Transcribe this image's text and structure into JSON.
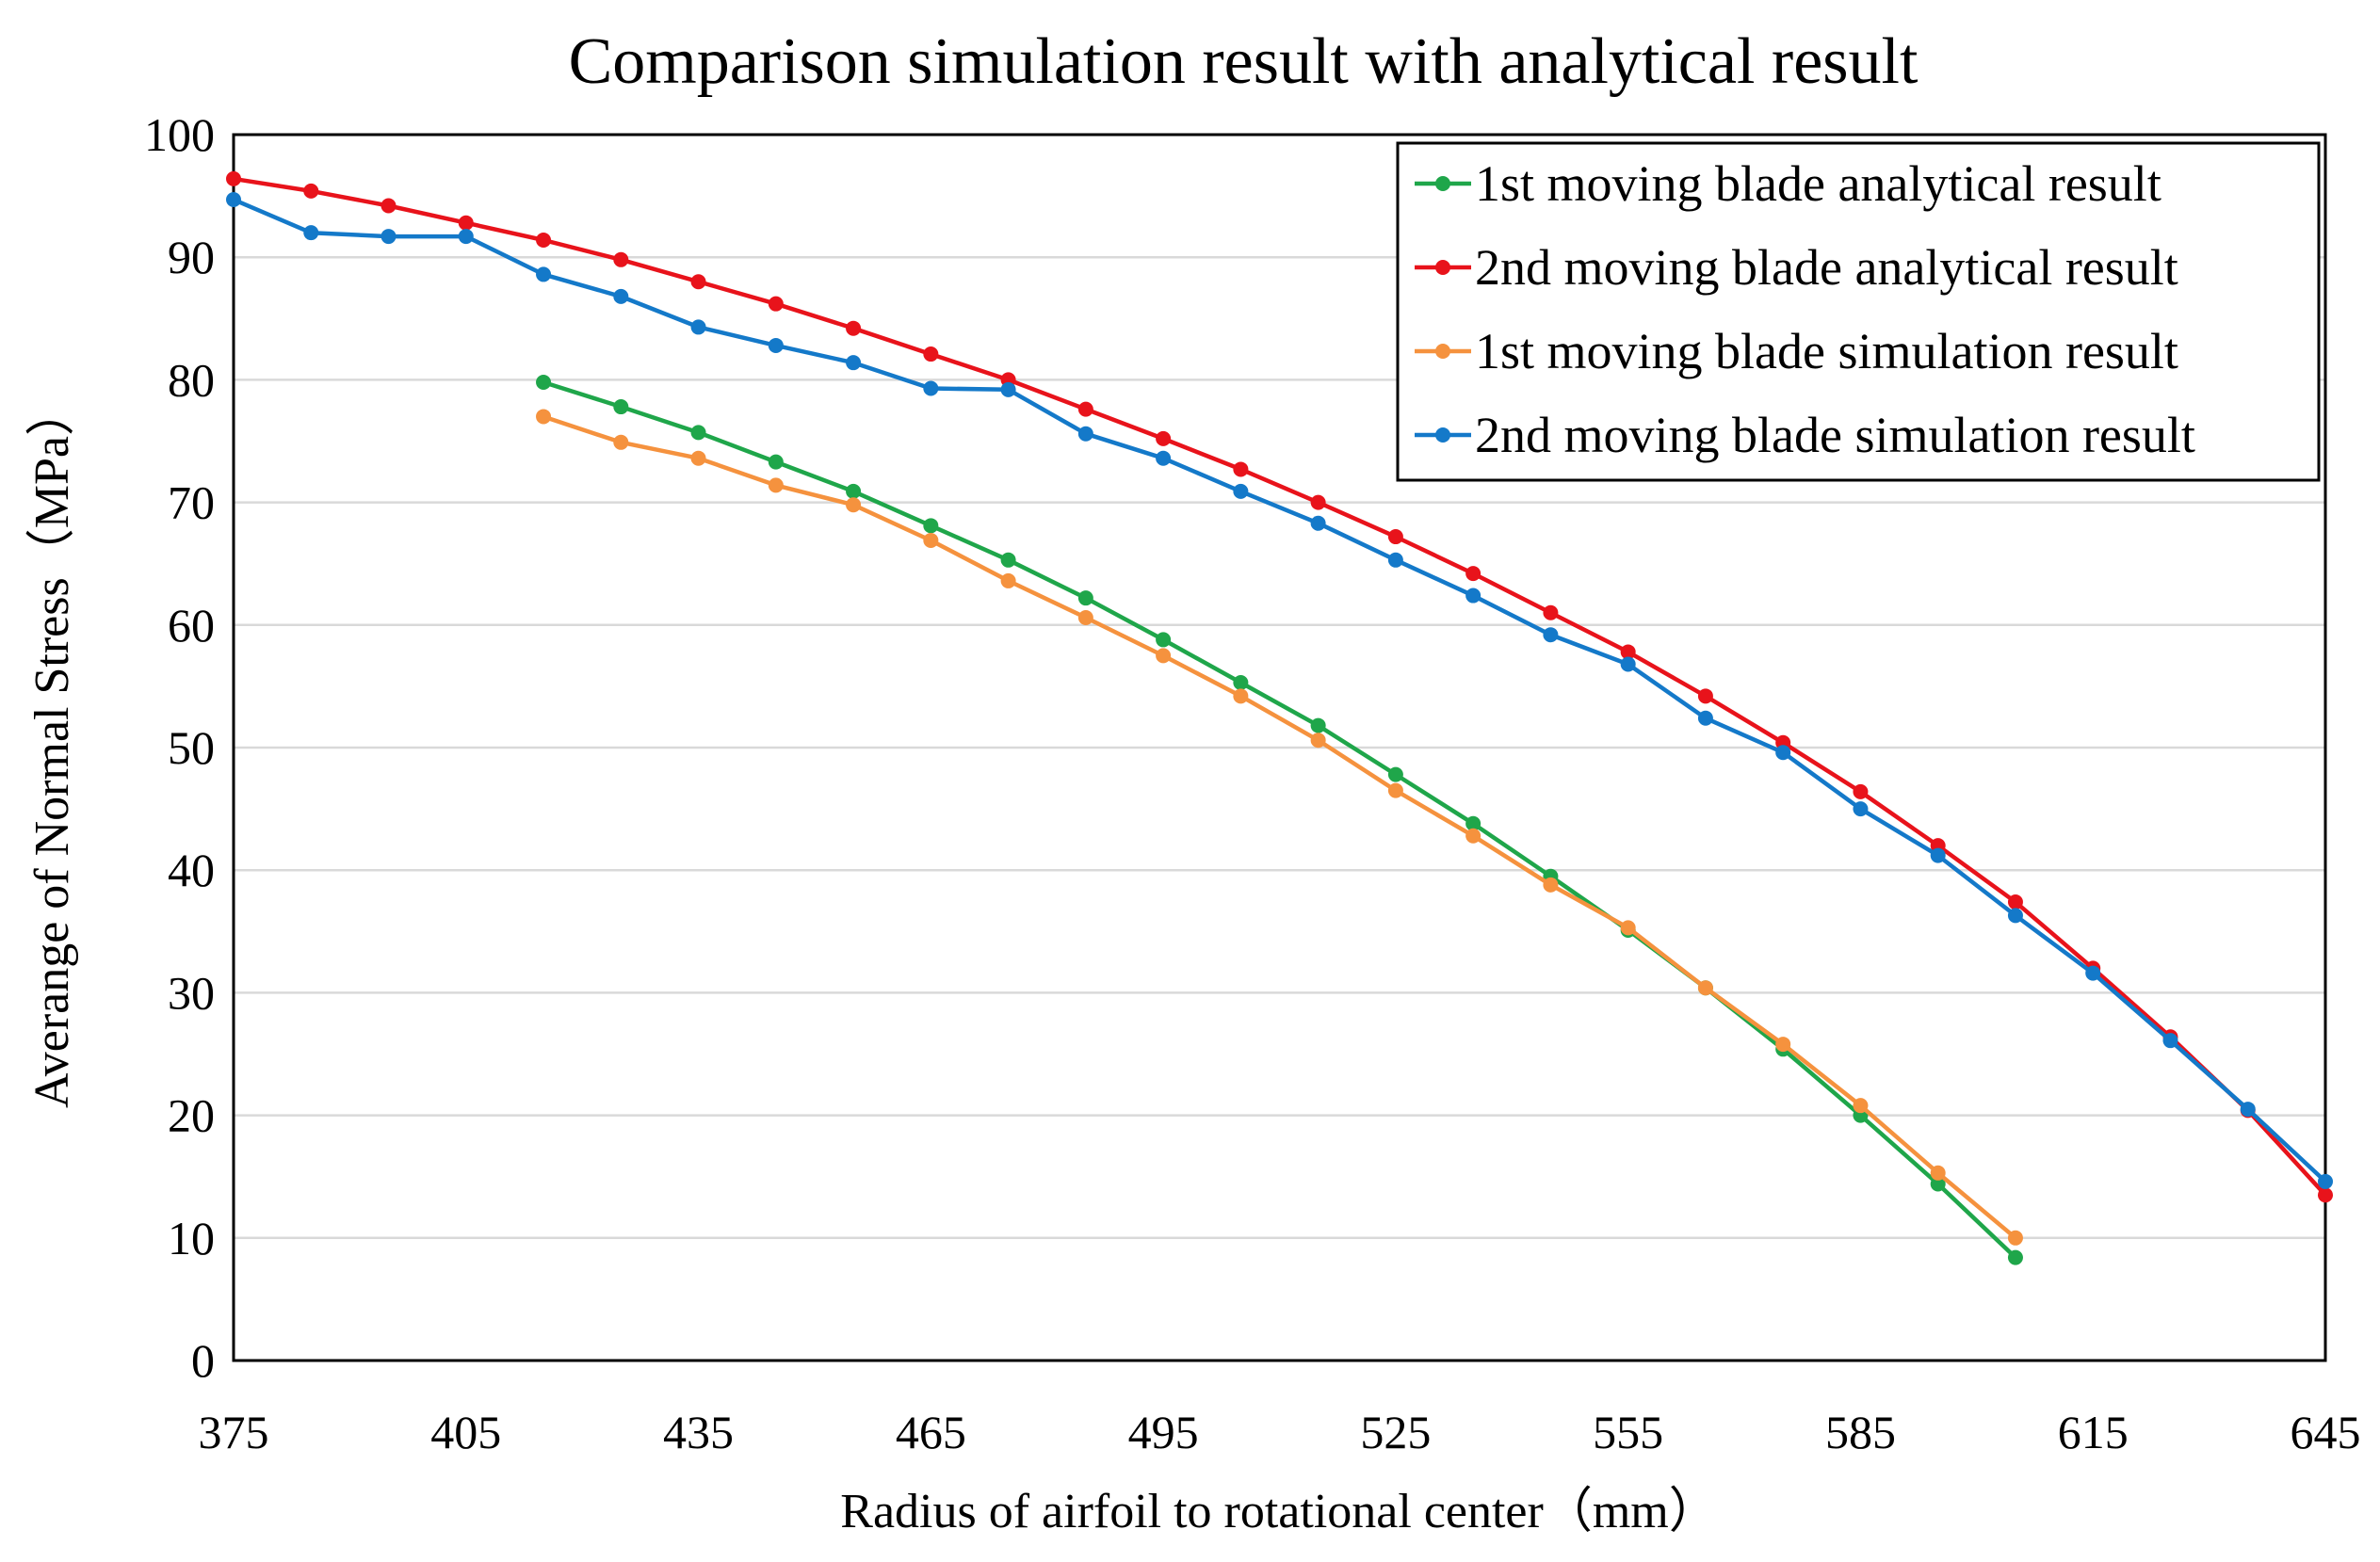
{
  "chart_data": {
    "type": "line",
    "title": "Comparison simulation result with analytical result",
    "xlabel": "Radius of airfoil to rotational center（mm）",
    "ylabel": "Averange of Normal Stress（MPa）",
    "xlim": [
      375,
      645
    ],
    "ylim": [
      0,
      100
    ],
    "xticks": [
      "375",
      "405",
      "435",
      "465",
      "495",
      "525",
      "555",
      "585",
      "615",
      "645"
    ],
    "yticks": [
      "0",
      "10",
      "20",
      "30",
      "40",
      "50",
      "60",
      "70",
      "80",
      "90",
      "100"
    ],
    "grid": "horizontal",
    "legend_position": "top-right",
    "series": [
      {
        "name": "1st moving blade analytical result",
        "color": "#1fa64a",
        "x": [
          415,
          425,
          435,
          445,
          455,
          465,
          475,
          485,
          495,
          505,
          515,
          525,
          535,
          545,
          555,
          565,
          575,
          585,
          595,
          605
        ],
        "values": [
          79.8,
          77.8,
          75.7,
          73.3,
          70.9,
          68.1,
          65.3,
          62.2,
          58.8,
          55.3,
          51.8,
          47.8,
          43.8,
          39.5,
          35.1,
          30.4,
          25.4,
          20.0,
          14.4,
          8.4
        ]
      },
      {
        "name": "2nd moving blade analytical result",
        "color": "#e8131b",
        "x": [
          375,
          385,
          395,
          405,
          415,
          425,
          435,
          445,
          455,
          465,
          475,
          485,
          495,
          505,
          515,
          525,
          535,
          545,
          555,
          565,
          575,
          585,
          595,
          605,
          615,
          625,
          635,
          645
        ],
        "values": [
          96.4,
          95.4,
          94.2,
          92.8,
          91.4,
          89.8,
          88.0,
          86.2,
          84.2,
          82.1,
          80.0,
          77.6,
          75.2,
          72.7,
          70.0,
          67.2,
          64.2,
          61.0,
          57.8,
          54.2,
          50.4,
          46.4,
          42.0,
          37.4,
          32.0,
          26.4,
          20.4,
          13.5
        ]
      },
      {
        "name": "1st moving blade simulation result",
        "color": "#f5923e",
        "x": [
          415,
          425,
          435,
          445,
          455,
          465,
          475,
          485,
          495,
          505,
          515,
          525,
          535,
          545,
          555,
          565,
          575,
          585,
          595,
          605
        ],
        "values": [
          77.0,
          74.9,
          73.6,
          71.4,
          69.8,
          66.9,
          63.6,
          60.6,
          57.5,
          54.2,
          50.6,
          46.5,
          42.8,
          38.8,
          35.3,
          30.4,
          25.8,
          20.8,
          15.3,
          10.0
        ]
      },
      {
        "name": "2nd moving blade simulation result",
        "color": "#1479c9",
        "x": [
          375,
          385,
          395,
          405,
          415,
          425,
          435,
          445,
          455,
          465,
          475,
          485,
          495,
          505,
          515,
          525,
          535,
          545,
          555,
          565,
          575,
          585,
          595,
          605,
          615,
          625,
          635,
          645
        ],
        "values": [
          94.7,
          92.0,
          91.7,
          91.7,
          88.6,
          86.8,
          84.3,
          82.8,
          81.4,
          79.3,
          79.2,
          75.6,
          73.6,
          70.9,
          68.3,
          65.3,
          62.4,
          59.2,
          56.8,
          52.4,
          49.6,
          45.0,
          41.2,
          36.3,
          31.6,
          26.1,
          20.5,
          14.6
        ]
      }
    ]
  }
}
